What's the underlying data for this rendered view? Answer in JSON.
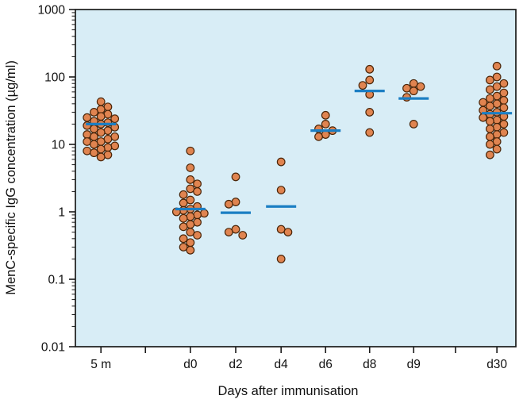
{
  "chart_data": {
    "type": "scatter",
    "title": "",
    "xlabel": "Days after immunisation",
    "ylabel": "MenC-specific IgG concentration (µg/ml)",
    "yscale": "log",
    "ylim": [
      0.01,
      1000
    ],
    "yticks": [
      0.01,
      0.1,
      1,
      10,
      100,
      1000
    ],
    "ytick_labels": [
      "0.01",
      "0.1",
      "1",
      "10",
      "100",
      "1000"
    ],
    "grid": false,
    "legend": "none",
    "plot_bg": "#D8EDF6",
    "dot_fill": "#E08450",
    "dot_stroke": "#4A2508",
    "median_color": "#1B7EC3",
    "axis_color": "#1A1A1A",
    "groups": [
      {
        "label": "5 m",
        "x": 0.058,
        "median": 20,
        "values": [
          6.5,
          7,
          7.5,
          8,
          8.5,
          9,
          9.5,
          10,
          11,
          11,
          12,
          13,
          13,
          14,
          15,
          16,
          17,
          18,
          19,
          20,
          21,
          22,
          24,
          25,
          26,
          28,
          30,
          33,
          36,
          43
        ]
      },
      {
        "label": "d0",
        "x": 0.261,
        "median": 1.1,
        "values": [
          8,
          4.5,
          3,
          2.6,
          2.2,
          2,
          1.8,
          1.5,
          1.35,
          1.2,
          1.1,
          1.05,
          1,
          0.95,
          0.9,
          0.85,
          0.8,
          0.7,
          0.65,
          0.6,
          0.5,
          0.45,
          0.4,
          0.35,
          0.3,
          0.27
        ]
      },
      {
        "label": "d2",
        "x": 0.364,
        "median": 0.97,
        "values": [
          3.3,
          1.4,
          1.3,
          0.55,
          0.5,
          0.45
        ]
      },
      {
        "label": "d4",
        "x": 0.467,
        "median": 1.2,
        "values": [
          5.5,
          2.1,
          0.55,
          0.5,
          0.2
        ]
      },
      {
        "label": "d6",
        "x": 0.568,
        "median": 16,
        "values": [
          27,
          20,
          17,
          16,
          14,
          13
        ]
      },
      {
        "label": "d8",
        "x": 0.668,
        "median": 62,
        "values": [
          130,
          90,
          75,
          55,
          30,
          15
        ]
      },
      {
        "label": "d9",
        "x": 0.768,
        "median": 48,
        "values": [
          80,
          72,
          68,
          62,
          50,
          20
        ]
      },
      {
        "label": "d30",
        "x": 0.957,
        "median": 29,
        "values": [
          145,
          100,
          90,
          80,
          72,
          65,
          58,
          52,
          48,
          45,
          42,
          40,
          37,
          35,
          32,
          30,
          28,
          26,
          25,
          23,
          22,
          20,
          18,
          17,
          15,
          14,
          13,
          11,
          10,
          8.5,
          7
        ]
      }
    ],
    "minor_xticks": [
      0.159,
      0.863
    ]
  }
}
